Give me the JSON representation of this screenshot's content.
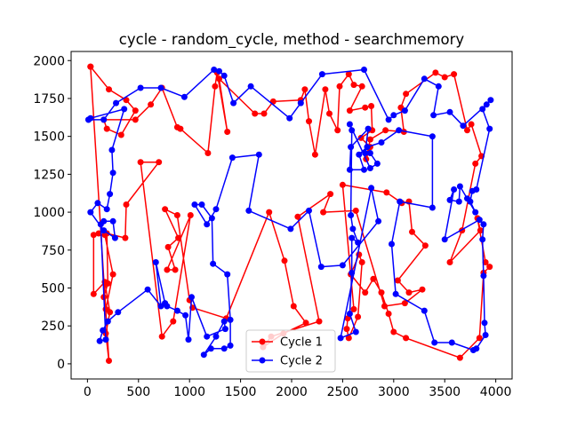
{
  "chart_data": {
    "type": "line",
    "title": "cycle - random_cycle, method - searchmemory",
    "xlabel": "",
    "ylabel": "",
    "xlim": [
      -160,
      4160
    ],
    "ylim": [
      -100,
      2060
    ],
    "xticks": [
      0,
      500,
      1000,
      1500,
      2000,
      2500,
      3000,
      3500,
      4000
    ],
    "yticks": [
      0,
      250,
      500,
      750,
      1000,
      1250,
      1500,
      1750,
      2000
    ],
    "grid": false,
    "legend": "lower center",
    "series": [
      {
        "name": "Cycle 1",
        "color": "#ff0000",
        "marker": "circle",
        "points": [
          [
            30,
            1960
          ],
          [
            210,
            1810
          ],
          [
            380,
            1740
          ],
          [
            470,
            1670
          ],
          [
            330,
            1510
          ],
          [
            190,
            1550
          ],
          [
            160,
            1610
          ],
          [
            470,
            1610
          ],
          [
            620,
            1710
          ],
          [
            730,
            1820
          ],
          [
            880,
            1560
          ],
          [
            910,
            1550
          ],
          [
            1180,
            1390
          ],
          [
            1250,
            1830
          ],
          [
            1270,
            1920
          ],
          [
            1370,
            1530
          ],
          [
            1290,
            1880
          ],
          [
            1640,
            1650
          ],
          [
            1730,
            1650
          ],
          [
            1820,
            1730
          ],
          [
            2090,
            1740
          ],
          [
            2130,
            1810
          ],
          [
            2170,
            1600
          ],
          [
            2230,
            1380
          ],
          [
            2330,
            1810
          ],
          [
            2370,
            1650
          ],
          [
            2450,
            1540
          ],
          [
            2470,
            1830
          ],
          [
            2560,
            1910
          ],
          [
            2610,
            1840
          ],
          [
            2690,
            1830
          ],
          [
            2570,
            1670
          ],
          [
            2720,
            1690
          ],
          [
            2780,
            1700
          ],
          [
            2790,
            1540
          ],
          [
            2680,
            1490
          ],
          [
            2770,
            1430
          ],
          [
            2730,
            1350
          ],
          [
            2770,
            1480
          ],
          [
            2920,
            1540
          ],
          [
            3100,
            1530
          ],
          [
            3070,
            1690
          ],
          [
            3120,
            1780
          ],
          [
            3410,
            1920
          ],
          [
            3500,
            1890
          ],
          [
            3590,
            1910
          ],
          [
            3720,
            1540
          ],
          [
            3760,
            1580
          ],
          [
            3860,
            1370
          ],
          [
            3800,
            1320
          ],
          [
            3670,
            880
          ],
          [
            3550,
            670
          ],
          [
            3850,
            880
          ],
          [
            3820,
            960
          ],
          [
            3900,
            670
          ],
          [
            3940,
            640
          ],
          [
            3880,
            600
          ],
          [
            3840,
            170
          ],
          [
            3650,
            40
          ],
          [
            3120,
            170
          ],
          [
            3000,
            210
          ],
          [
            2950,
            330
          ],
          [
            2880,
            470
          ],
          [
            2800,
            560
          ],
          [
            2720,
            470
          ],
          [
            2580,
            590
          ],
          [
            2660,
            720
          ],
          [
            2690,
            670
          ],
          [
            2650,
            310
          ],
          [
            2560,
            170
          ],
          [
            2540,
            230
          ],
          [
            2550,
            300
          ],
          [
            2610,
            360
          ],
          [
            2500,
            1180
          ],
          [
            2930,
            1130
          ],
          [
            3080,
            1060
          ],
          [
            3150,
            1070
          ],
          [
            3180,
            870
          ],
          [
            3310,
            780
          ],
          [
            3040,
            550
          ],
          [
            3150,
            470
          ],
          [
            3280,
            490
          ],
          [
            3110,
            400
          ],
          [
            2910,
            380
          ],
          [
            2630,
            1010
          ],
          [
            2310,
            1000
          ],
          [
            2380,
            1120
          ],
          [
            2060,
            970
          ],
          [
            2270,
            280
          ],
          [
            1800,
            180
          ],
          [
            1720,
            110
          ],
          [
            1920,
            200
          ],
          [
            2140,
            270
          ],
          [
            2020,
            380
          ],
          [
            1930,
            680
          ],
          [
            1780,
            1000
          ],
          [
            1360,
            300
          ],
          [
            1030,
            370
          ],
          [
            1000,
            420
          ],
          [
            880,
            980
          ],
          [
            760,
            1020
          ],
          [
            890,
            830
          ],
          [
            790,
            770
          ],
          [
            860,
            620
          ],
          [
            780,
            620
          ],
          [
            1010,
            980
          ],
          [
            840,
            280
          ],
          [
            730,
            180
          ],
          [
            520,
            1330
          ],
          [
            700,
            1330
          ],
          [
            380,
            1050
          ],
          [
            370,
            830
          ],
          [
            190,
            860
          ],
          [
            200,
            530
          ],
          [
            160,
            440
          ],
          [
            180,
            360
          ],
          [
            250,
            590
          ],
          [
            170,
            850
          ],
          [
            110,
            860
          ],
          [
            60,
            850
          ],
          [
            60,
            460
          ],
          [
            170,
            540
          ],
          [
            220,
            340
          ],
          [
            180,
            200
          ],
          [
            210,
            20
          ],
          [
            30,
            1960
          ]
        ]
      },
      {
        "name": "Cycle 2",
        "color": "#0000ff",
        "marker": "circle",
        "points": [
          [
            10,
            1610
          ],
          [
            160,
            1610
          ],
          [
            280,
            1720
          ],
          [
            520,
            1820
          ],
          [
            720,
            1820
          ],
          [
            950,
            1760
          ],
          [
            1240,
            1940
          ],
          [
            1290,
            1930
          ],
          [
            1340,
            1900
          ],
          [
            1430,
            1720
          ],
          [
            1600,
            1830
          ],
          [
            1980,
            1620
          ],
          [
            2090,
            1720
          ],
          [
            2300,
            1910
          ],
          [
            2710,
            1940
          ],
          [
            2950,
            1610
          ],
          [
            3000,
            1640
          ],
          [
            3110,
            1670
          ],
          [
            3300,
            1880
          ],
          [
            3440,
            1830
          ],
          [
            3390,
            1640
          ],
          [
            3550,
            1660
          ],
          [
            3680,
            1570
          ],
          [
            3910,
            1710
          ],
          [
            3950,
            1740
          ],
          [
            3870,
            1680
          ],
          [
            3940,
            1550
          ],
          [
            3810,
            1150
          ],
          [
            3770,
            1140
          ],
          [
            3750,
            1070
          ],
          [
            3800,
            1000
          ],
          [
            3720,
            1090
          ],
          [
            3650,
            1170
          ],
          [
            3640,
            1070
          ],
          [
            3550,
            1080
          ],
          [
            3590,
            1150
          ],
          [
            3500,
            820
          ],
          [
            3840,
            950
          ],
          [
            3880,
            920
          ],
          [
            3870,
            820
          ],
          [
            3880,
            580
          ],
          [
            3890,
            270
          ],
          [
            3900,
            190
          ],
          [
            3810,
            100
          ],
          [
            3780,
            90
          ],
          [
            3570,
            140
          ],
          [
            3400,
            140
          ],
          [
            3300,
            350
          ],
          [
            3020,
            460
          ],
          [
            2980,
            790
          ],
          [
            3060,
            1070
          ],
          [
            3380,
            1030
          ],
          [
            3380,
            1500
          ],
          [
            3050,
            1540
          ],
          [
            2880,
            1460
          ],
          [
            2740,
            1430
          ],
          [
            2660,
            1380
          ],
          [
            2710,
            1280
          ],
          [
            2570,
            1280
          ],
          [
            2580,
            1430
          ],
          [
            2750,
            1550
          ],
          [
            2720,
            1390
          ],
          [
            2770,
            1390
          ],
          [
            2840,
            1320
          ],
          [
            2770,
            1290
          ],
          [
            2570,
            1580
          ],
          [
            2590,
            1540
          ],
          [
            2580,
            980
          ],
          [
            2600,
            890
          ],
          [
            2650,
            800
          ],
          [
            2590,
            830
          ],
          [
            2590,
            600
          ],
          [
            2570,
            330
          ],
          [
            2630,
            210
          ],
          [
            2480,
            170
          ],
          [
            2780,
            1160
          ],
          [
            2850,
            940
          ],
          [
            2500,
            650
          ],
          [
            2290,
            640
          ],
          [
            2170,
            1010
          ],
          [
            1990,
            890
          ],
          [
            1580,
            1010
          ],
          [
            1680,
            1380
          ],
          [
            1420,
            1360
          ],
          [
            1260,
            1020
          ],
          [
            1170,
            920
          ],
          [
            1050,
            1050
          ],
          [
            1120,
            1050
          ],
          [
            1220,
            960
          ],
          [
            1230,
            660
          ],
          [
            1370,
            590
          ],
          [
            1400,
            290
          ],
          [
            1400,
            120
          ],
          [
            1340,
            100
          ],
          [
            1210,
            100
          ],
          [
            1140,
            60
          ],
          [
            1260,
            180
          ],
          [
            1340,
            280
          ],
          [
            1350,
            230
          ],
          [
            1170,
            180
          ],
          [
            1020,
            440
          ],
          [
            990,
            160
          ],
          [
            960,
            320
          ],
          [
            880,
            350
          ],
          [
            780,
            380
          ],
          [
            760,
            400
          ],
          [
            670,
            670
          ],
          [
            720,
            380
          ],
          [
            590,
            490
          ],
          [
            300,
            340
          ],
          [
            200,
            280
          ],
          [
            150,
            220
          ],
          [
            120,
            150
          ],
          [
            180,
            160
          ],
          [
            130,
            920
          ],
          [
            160,
            940
          ],
          [
            250,
            940
          ],
          [
            270,
            830
          ],
          [
            160,
            880
          ],
          [
            30,
            1000
          ],
          [
            100,
            1060
          ],
          [
            190,
            1020
          ],
          [
            220,
            1120
          ],
          [
            250,
            1260
          ],
          [
            240,
            1410
          ],
          [
            360,
            1680
          ],
          [
            30,
            1620
          ],
          [
            10,
            1610
          ]
        ]
      }
    ]
  }
}
